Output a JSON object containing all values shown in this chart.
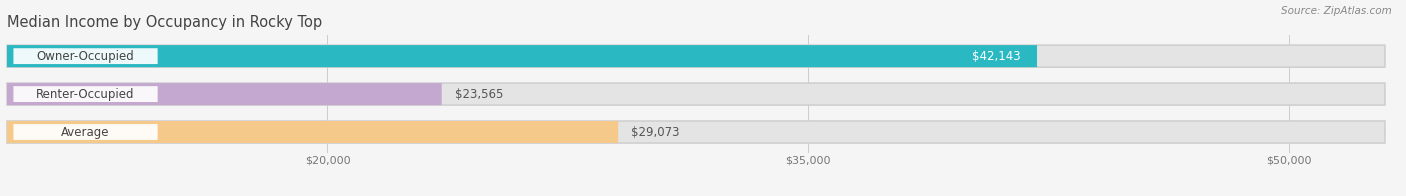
{
  "title": "Median Income by Occupancy in Rocky Top",
  "source": "Source: ZipAtlas.com",
  "categories": [
    "Owner-Occupied",
    "Renter-Occupied",
    "Average"
  ],
  "values": [
    42143,
    23565,
    29073
  ],
  "labels": [
    "$42,143",
    "$23,565",
    "$29,073"
  ],
  "bar_colors": [
    "#2ab8c2",
    "#c4a8d0",
    "#f5c98a"
  ],
  "track_color": "#e4e4e4",
  "label_value_colors": [
    "white",
    "#555555",
    "#555555"
  ],
  "background_color": "#f5f5f5",
  "xlim_data": [
    10000,
    53000
  ],
  "xmin": 10000,
  "xmax": 53000,
  "xticks": [
    20000,
    35000,
    50000
  ],
  "xticklabels": [
    "$20,000",
    "$35,000",
    "$50,000"
  ],
  "bar_height": 0.58,
  "title_fontsize": 10.5,
  "cat_fontsize": 8.5,
  "val_fontsize": 8.5,
  "tick_fontsize": 8,
  "source_fontsize": 7.5,
  "grid_color": "#cccccc"
}
